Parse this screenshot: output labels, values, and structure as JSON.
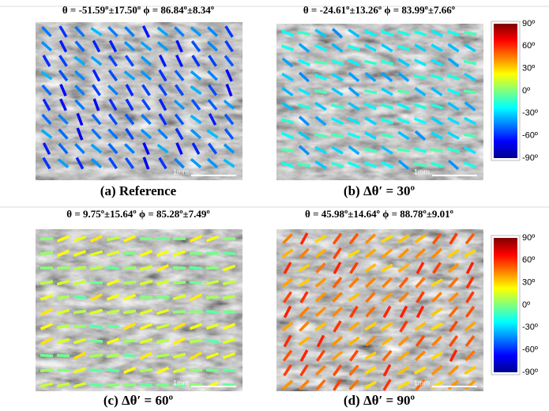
{
  "panels": [
    {
      "header": "θ = -51.59º±17.50º   ϕ = 86.84º±8.34º",
      "scale_bar": "1mm",
      "caption": "(a) Reference"
    },
    {
      "header": "θ = -24.61º±13.26º   ϕ = 83.99º±7.66º",
      "scale_bar": "1mm",
      "caption": "(b) Δθ′ = 30º"
    },
    {
      "header": "θ = 9.75º±15.64º   ϕ = 85.28º±7.49º",
      "scale_bar": "1mm",
      "caption": "(c) Δθ′ = 60º"
    },
    {
      "header": "θ = 45.98º±14.64º   ϕ = 88.78º±9.01º",
      "scale_bar": "1mm",
      "caption": "(d) Δθ′ = 90º"
    }
  ],
  "colorbars": [
    {
      "ticks": [
        "90º",
        "60º",
        "30º",
        "0º",
        "-30º",
        "-60º",
        "-90º"
      ]
    },
    {
      "ticks": [
        "90º",
        "60º",
        "30º",
        "0º",
        "-30º",
        "-60º",
        "-90º"
      ]
    }
  ]
}
